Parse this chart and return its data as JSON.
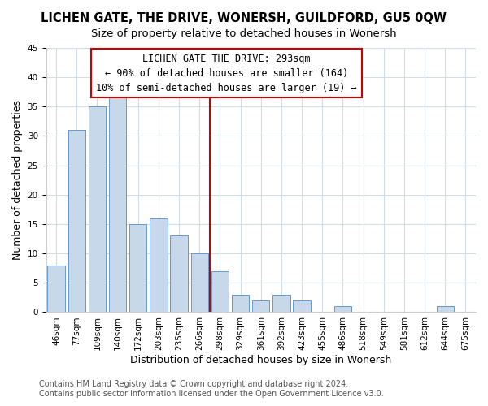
{
  "title": "LICHEN GATE, THE DRIVE, WONERSH, GUILDFORD, GU5 0QW",
  "subtitle": "Size of property relative to detached houses in Wonersh",
  "xlabel": "Distribution of detached houses by size in Wonersh",
  "ylabel": "Number of detached properties",
  "footer_line1": "Contains HM Land Registry data © Crown copyright and database right 2024.",
  "footer_line2": "Contains public sector information licensed under the Open Government Licence v3.0.",
  "bar_labels": [
    "46sqm",
    "77sqm",
    "109sqm",
    "140sqm",
    "172sqm",
    "203sqm",
    "235sqm",
    "266sqm",
    "298sqm",
    "329sqm",
    "361sqm",
    "392sqm",
    "423sqm",
    "455sqm",
    "486sqm",
    "518sqm",
    "549sqm",
    "581sqm",
    "612sqm",
    "644sqm",
    "675sqm"
  ],
  "bar_heights": [
    8,
    31,
    35,
    37,
    15,
    16,
    13,
    10,
    7,
    3,
    2,
    3,
    2,
    0,
    1,
    0,
    0,
    0,
    0,
    1,
    0
  ],
  "bar_color": "#c8d8eb",
  "bar_edge_color": "#6699cc",
  "vline_x_index": 8,
  "vline_color": "#cc0000",
  "annotation_title": "LICHEN GATE THE DRIVE: 293sqm",
  "annotation_line1": "← 90% of detached houses are smaller (164)",
  "annotation_line2": "10% of semi-detached houses are larger (19) →",
  "annotation_box_facecolor": "#ffffff",
  "annotation_box_edgecolor": "#cc0000",
  "ylim": [
    0,
    45
  ],
  "yticks": [
    0,
    5,
    10,
    15,
    20,
    25,
    30,
    35,
    40,
    45
  ],
  "title_fontsize": 10.5,
  "subtitle_fontsize": 9.5,
  "axis_label_fontsize": 9,
  "tick_fontsize": 7.5,
  "annotation_fontsize": 8.5,
  "footer_fontsize": 7,
  "background_color": "#ffffff",
  "grid_color": "#d0dce8"
}
